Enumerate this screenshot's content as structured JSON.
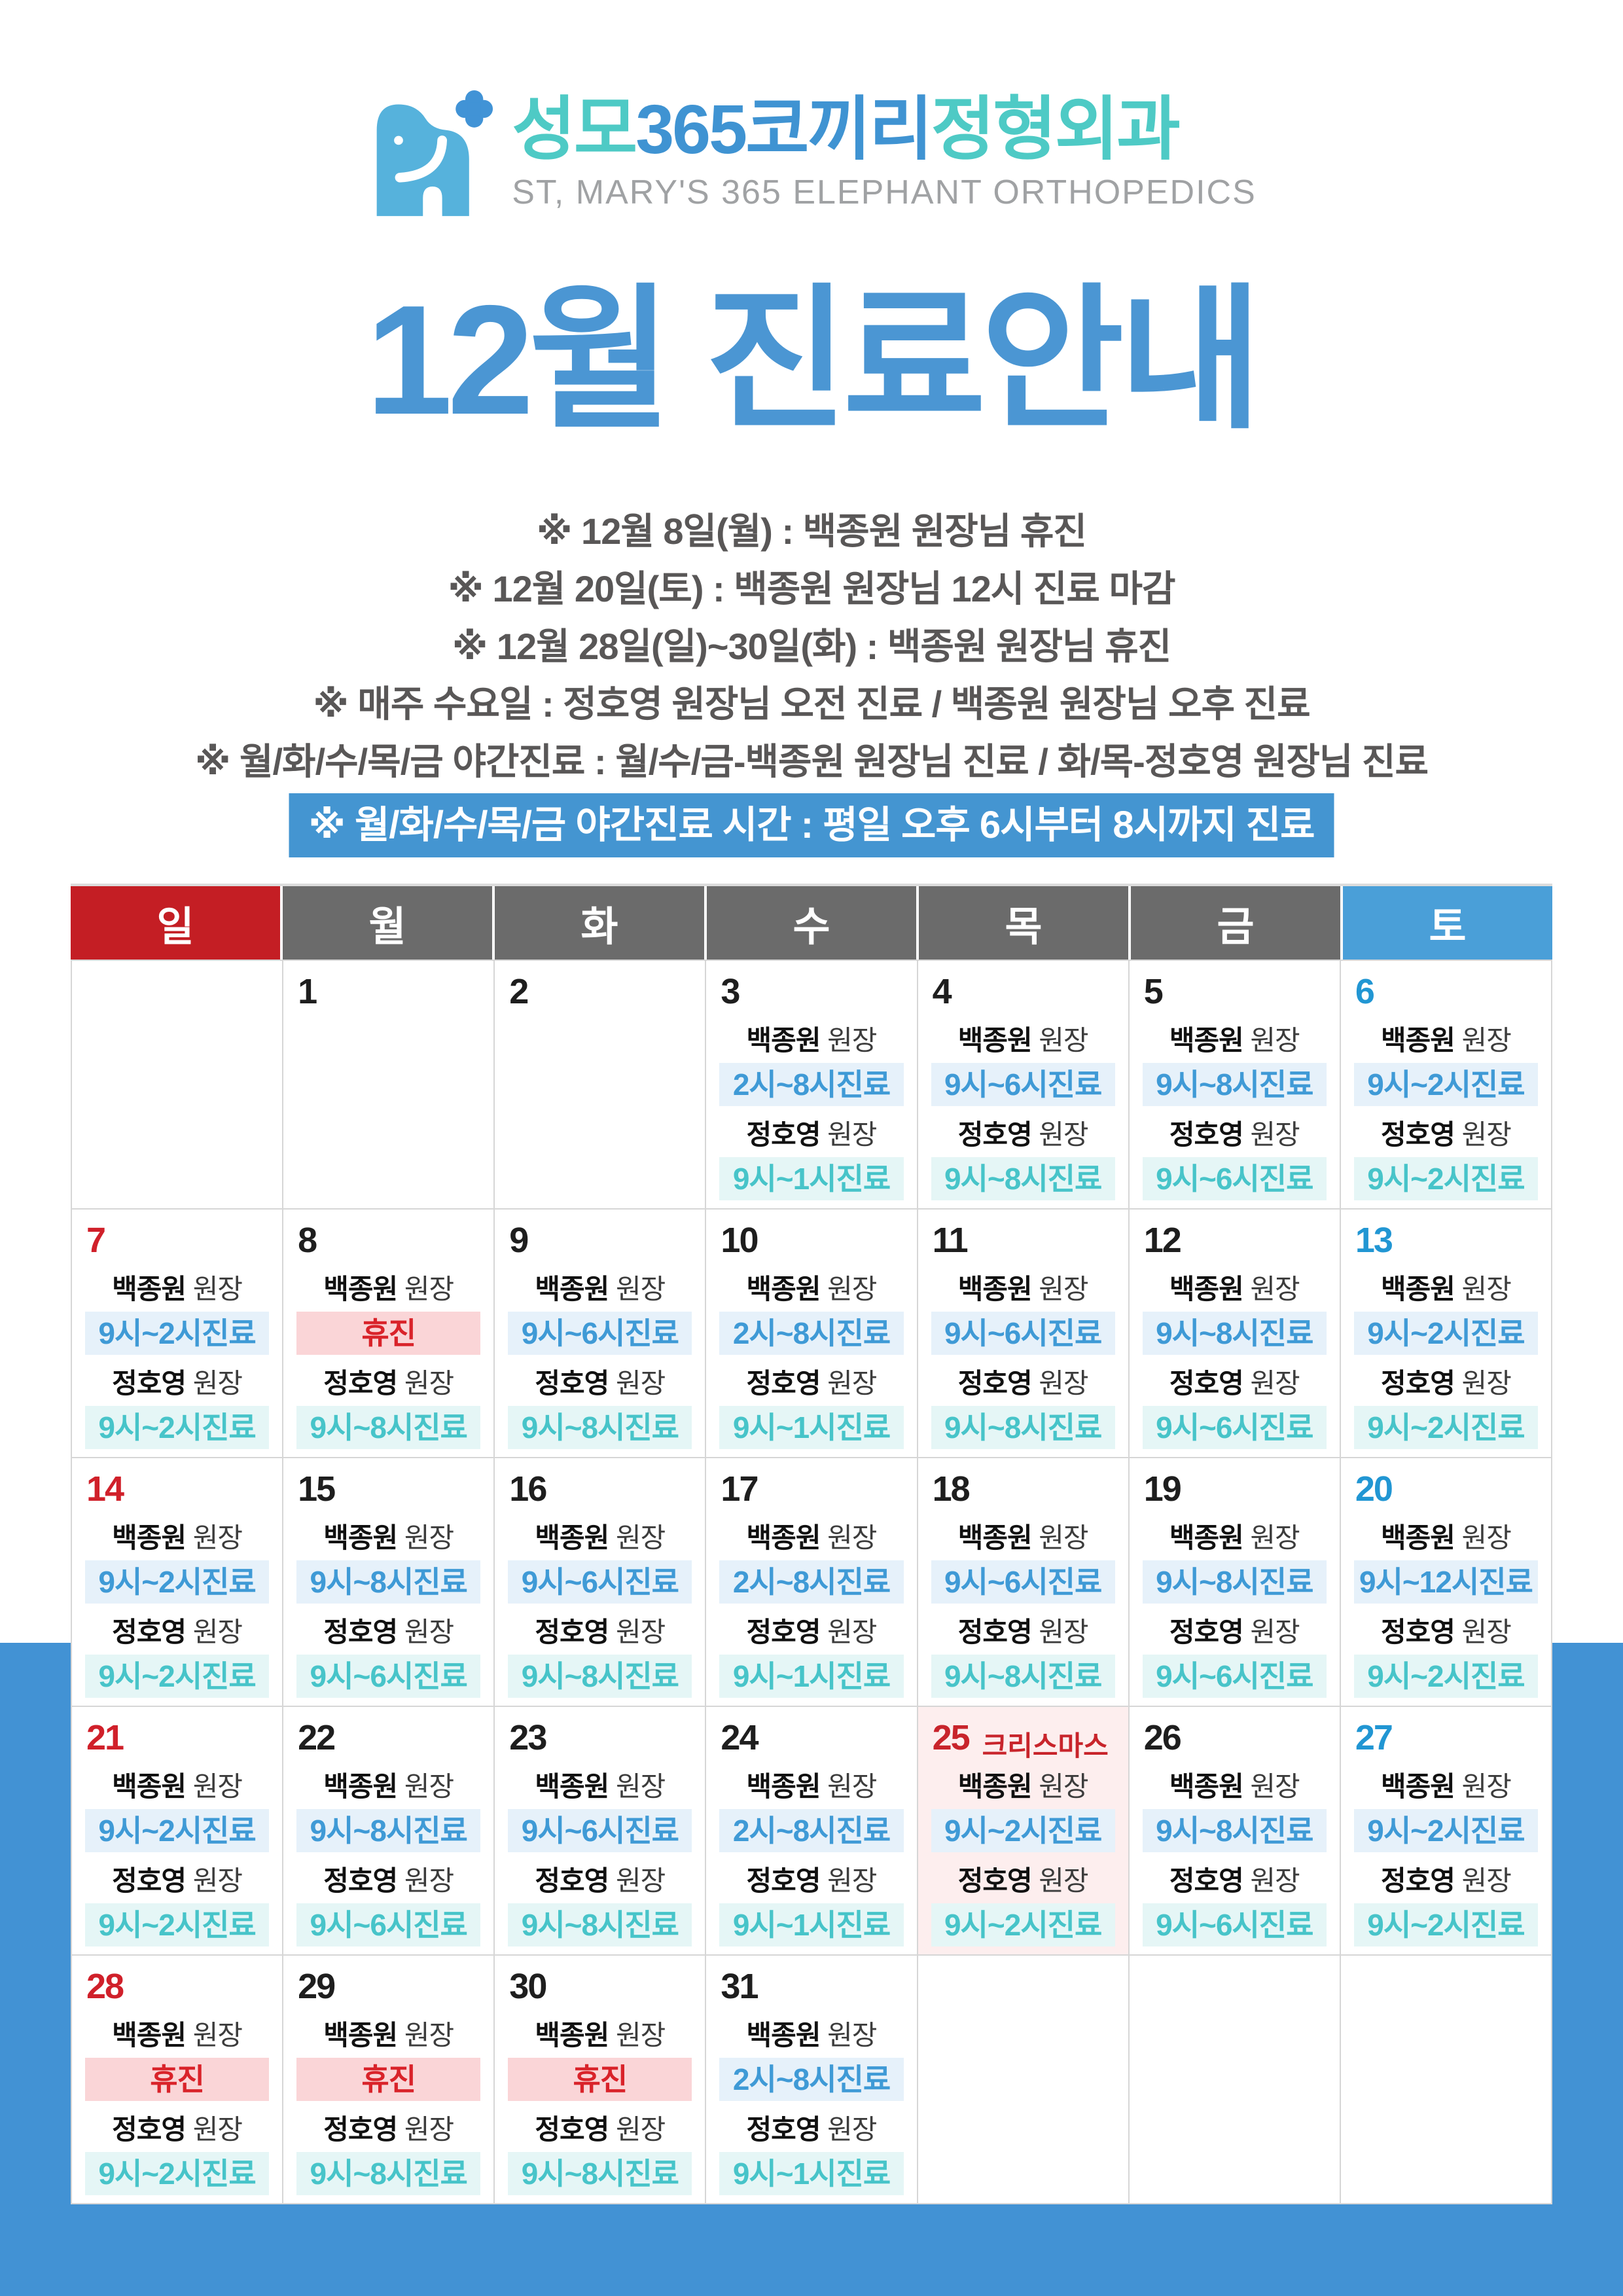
{
  "logo": {
    "icon": "elephant-with-sparkle-icon",
    "name_segments": [
      {
        "text": "성모",
        "color": "#4ecac5"
      },
      {
        "text": "365코끼리",
        "color": "#3f93d2"
      },
      {
        "text": "정형외과",
        "color": "#4ecac5"
      }
    ],
    "subtitle": "ST, MARY'S 365 ELEPHANT ORTHOPEDICS"
  },
  "title": "12월 진료안내",
  "notices": [
    "※ 12월 8일(월) : 백종원 원장님 휴진",
    "※ 12월 20일(토) : 백종원 원장님 12시 진료 마감",
    "※ 12월 28일(일)~30일(화) : 백종원 원장님 휴진",
    "※ 매주 수요일 : 정호영 원장님 오전 진료 / 백종원 원장님 오후 진료",
    "※ 월/화/수/목/금 야간진료 : 월/수/금-백종원 원장님 진료 / 화/목-정호영 원장님 진료"
  ],
  "highlight_notice": "※ 월/화/수/목/금 야간진료 시간 : 평일 오후 6시부터 8시까지 진료",
  "calendar": {
    "weekday_headers": [
      {
        "label": "일",
        "type": "sun"
      },
      {
        "label": "월",
        "type": "weekday"
      },
      {
        "label": "화",
        "type": "weekday"
      },
      {
        "label": "수",
        "type": "weekday"
      },
      {
        "label": "목",
        "type": "weekday"
      },
      {
        "label": "금",
        "type": "weekday"
      },
      {
        "label": "토",
        "type": "sat"
      }
    ],
    "doctor1": "백종원",
    "doctor2": "정호영",
    "doctor_suffix": "원장",
    "closed_label": "휴진",
    "days": [
      {},
      {
        "num": "1"
      },
      {
        "num": "2"
      },
      {
        "num": "3",
        "doc1": "2시~8시진료",
        "doc2": "9시~1시진료"
      },
      {
        "num": "4",
        "doc1": "9시~6시진료",
        "doc2": "9시~8시진료"
      },
      {
        "num": "5",
        "doc1": "9시~8시진료",
        "doc2": "9시~6시진료"
      },
      {
        "num": "6",
        "doc1": "9시~2시진료",
        "doc2": "9시~2시진료"
      },
      {
        "num": "7",
        "doc1": "9시~2시진료",
        "doc2": "9시~2시진료"
      },
      {
        "num": "8",
        "doc1": "휴진",
        "doc2": "9시~8시진료"
      },
      {
        "num": "9",
        "doc1": "9시~6시진료",
        "doc2": "9시~8시진료"
      },
      {
        "num": "10",
        "doc1": "2시~8시진료",
        "doc2": "9시~1시진료"
      },
      {
        "num": "11",
        "doc1": "9시~6시진료",
        "doc2": "9시~8시진료"
      },
      {
        "num": "12",
        "doc1": "9시~8시진료",
        "doc2": "9시~6시진료"
      },
      {
        "num": "13",
        "doc1": "9시~2시진료",
        "doc2": "9시~2시진료"
      },
      {
        "num": "14",
        "doc1": "9시~2시진료",
        "doc2": "9시~2시진료"
      },
      {
        "num": "15",
        "doc1": "9시~8시진료",
        "doc2": "9시~6시진료"
      },
      {
        "num": "16",
        "doc1": "9시~6시진료",
        "doc2": "9시~8시진료"
      },
      {
        "num": "17",
        "doc1": "2시~8시진료",
        "doc2": "9시~1시진료"
      },
      {
        "num": "18",
        "doc1": "9시~6시진료",
        "doc2": "9시~8시진료"
      },
      {
        "num": "19",
        "doc1": "9시~8시진료",
        "doc2": "9시~6시진료"
      },
      {
        "num": "20",
        "doc1": "9시~12시진료",
        "doc2": "9시~2시진료"
      },
      {
        "num": "21",
        "doc1": "9시~2시진료",
        "doc2": "9시~2시진료"
      },
      {
        "num": "22",
        "doc1": "9시~8시진료",
        "doc2": "9시~6시진료"
      },
      {
        "num": "23",
        "doc1": "9시~6시진료",
        "doc2": "9시~8시진료"
      },
      {
        "num": "24",
        "doc1": "2시~8시진료",
        "doc2": "9시~1시진료"
      },
      {
        "num": "25",
        "label": "크리스마스",
        "highlight": true,
        "doc1": "9시~2시진료",
        "doc2": "9시~2시진료"
      },
      {
        "num": "26",
        "doc1": "9시~8시진료",
        "doc2": "9시~6시진료"
      },
      {
        "num": "27",
        "doc1": "9시~2시진료",
        "doc2": "9시~2시진료"
      },
      {
        "num": "28",
        "doc1": "휴진",
        "doc2": "9시~2시진료"
      },
      {
        "num": "29",
        "doc1": "휴진",
        "doc2": "9시~8시진료"
      },
      {
        "num": "30",
        "doc1": "휴진",
        "doc2": "9시~8시진료"
      },
      {
        "num": "31",
        "doc1": "2시~8시진료",
        "doc2": "9시~1시진료"
      },
      {},
      {},
      {}
    ]
  },
  "colors": {
    "title_blue": "#4b96d3",
    "notice_gray": "#595757",
    "night_bar_blue": "#4495d1",
    "header_sunday_red": "#c41e24",
    "header_weekday_gray": "#6b6b6b",
    "header_saturday_blue": "#4a9fd8",
    "badge_doc1_blue": "#3f9ad6",
    "badge_doc1_bg": "#e6f1fa",
    "badge_doc2_teal": "#47c4c9",
    "badge_doc2_bg": "#e5f6f6",
    "closed_red": "#d9232a",
    "closed_bg": "#fad5d7",
    "holiday_cell_bg": "#fdeeee",
    "footer_blue": "#4292d4",
    "logo_teal": "#4ecac5",
    "logo_blue": "#3f93d2",
    "elephant_blue": "#56b2dc"
  }
}
